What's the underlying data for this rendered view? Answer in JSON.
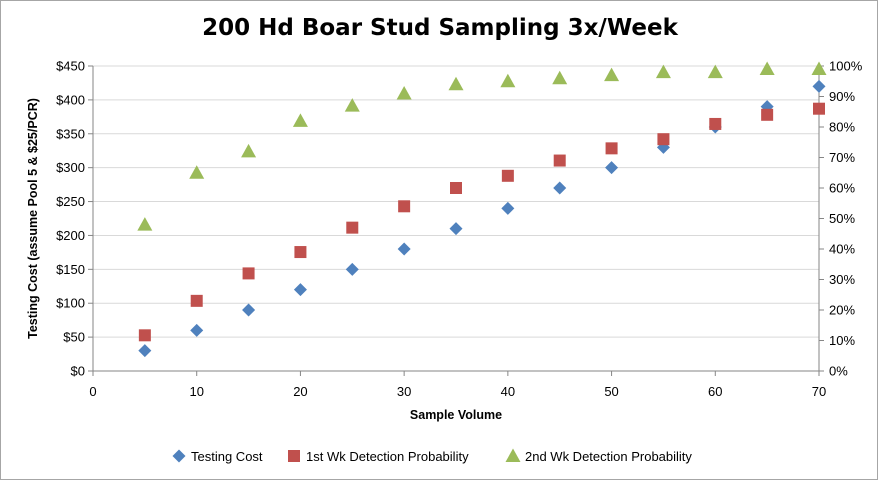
{
  "chart_data": {
    "type": "scatter",
    "title": "200 Hd Boar Stud Sampling 3x/Week",
    "xlabel": "Sample Volume",
    "ylabel": "Testing Cost (assume Pool 5 & $25/PCR)",
    "xlim": [
      0,
      70
    ],
    "ylim": [
      0,
      450
    ],
    "y2lim": [
      0,
      1.0
    ],
    "x_ticks": [
      "0",
      "10",
      "20",
      "30",
      "40",
      "50",
      "60",
      "70"
    ],
    "y_ticks": [
      "$0",
      "$50",
      "$100",
      "$150",
      "$200",
      "$250",
      "$300",
      "$350",
      "$400",
      "$450"
    ],
    "y2_ticks": [
      "0%",
      "10%",
      "20%",
      "30%",
      "40%",
      "50%",
      "60%",
      "70%",
      "80%",
      "90%",
      "100%"
    ],
    "grid": true,
    "legend_position": "bottom",
    "series": [
      {
        "name": "Testing Cost",
        "axis": "left",
        "marker": "diamond",
        "color": "#4f81bd",
        "x": [
          5,
          10,
          15,
          20,
          25,
          30,
          35,
          40,
          45,
          50,
          55,
          60,
          65,
          70
        ],
        "y": [
          30,
          60,
          90,
          120,
          150,
          180,
          210,
          240,
          270,
          300,
          330,
          360,
          390,
          420
        ]
      },
      {
        "name": "1st Wk Detection Probability",
        "axis": "right",
        "marker": "square",
        "color": "#c0504d",
        "x": [
          5,
          10,
          15,
          20,
          25,
          30,
          35,
          40,
          45,
          50,
          55,
          60,
          65,
          70
        ],
        "y": [
          0.117,
          0.23,
          0.32,
          0.39,
          0.47,
          0.54,
          0.6,
          0.64,
          0.69,
          0.73,
          0.76,
          0.81,
          0.84,
          0.86
        ]
      },
      {
        "name": "2nd Wk Detection Probability",
        "axis": "right",
        "marker": "triangle",
        "color": "#9bbb59",
        "x": [
          5,
          10,
          15,
          20,
          25,
          30,
          35,
          40,
          45,
          50,
          55,
          60,
          65,
          70
        ],
        "y": [
          0.48,
          0.65,
          0.72,
          0.82,
          0.87,
          0.91,
          0.94,
          0.95,
          0.96,
          0.97,
          0.98,
          0.98,
          0.99,
          0.99
        ]
      }
    ]
  }
}
